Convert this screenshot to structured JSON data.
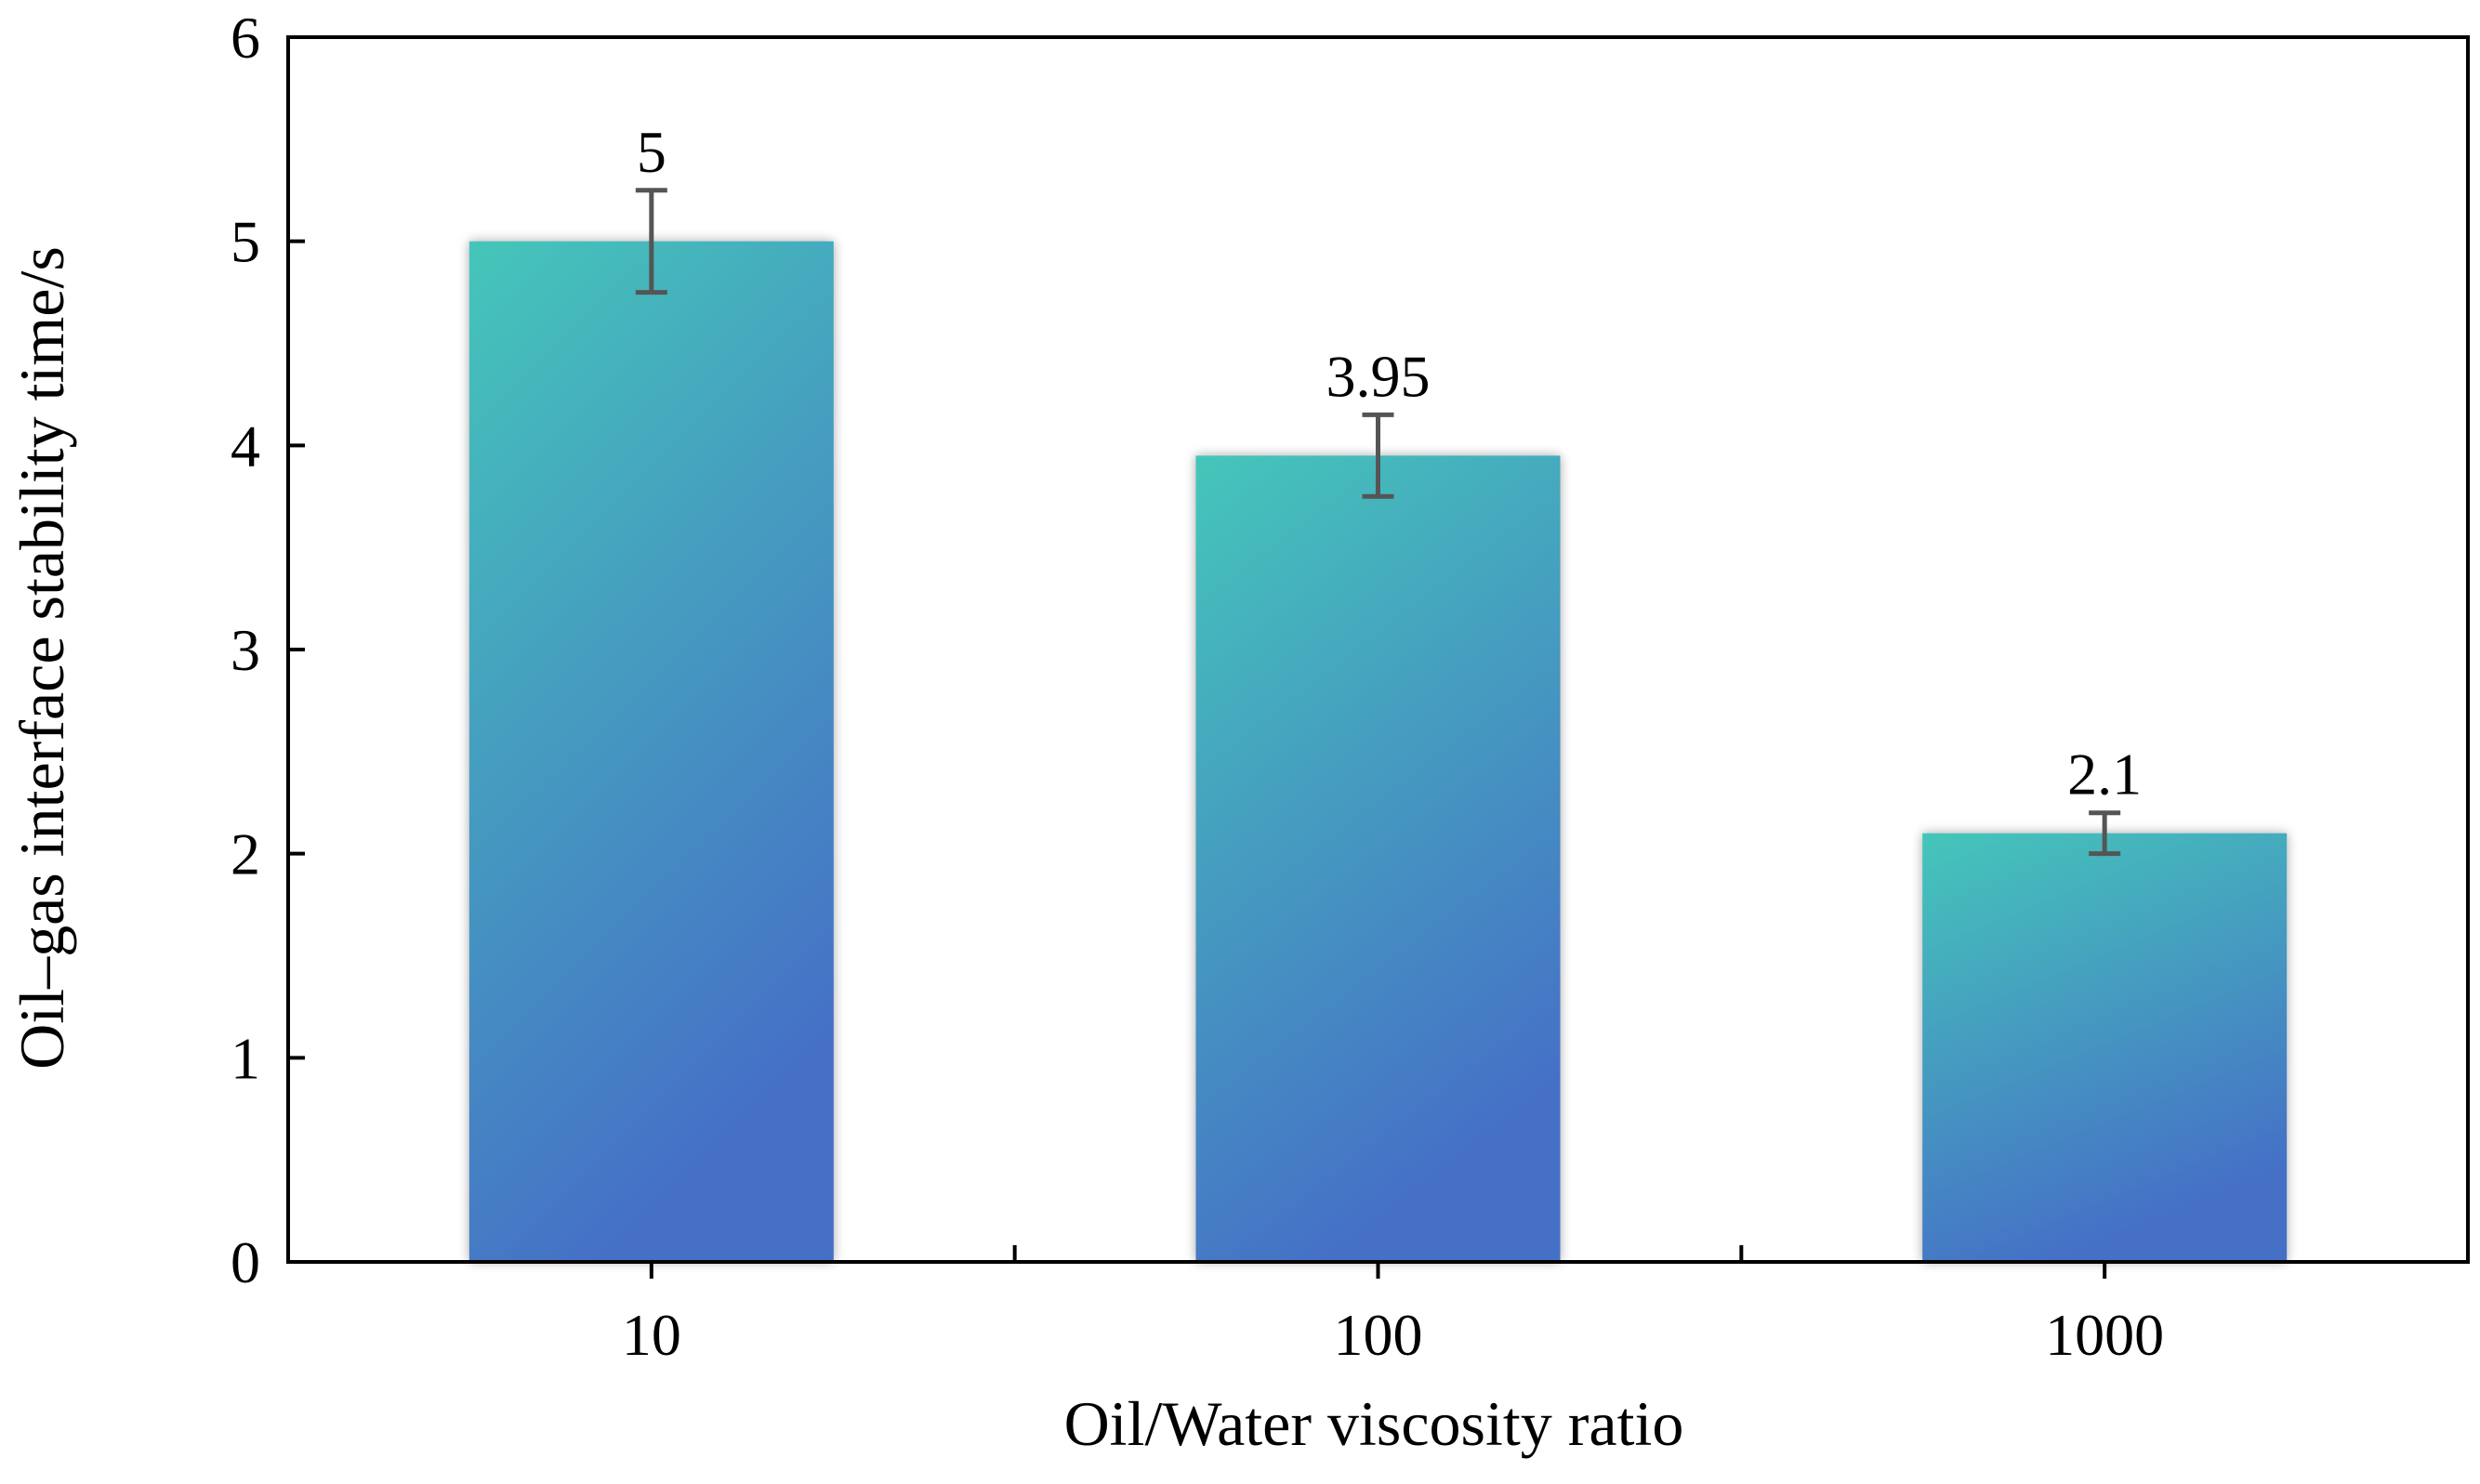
{
  "chart_data": {
    "type": "bar",
    "title": "",
    "xlabel": "Oil/Water viscosity ratio",
    "ylabel": "Oil–gas interface stability time/s",
    "categories": [
      "10",
      "100",
      "1000"
    ],
    "values": [
      5,
      3.95,
      2.1
    ],
    "value_labels": [
      "5",
      "3.95",
      "2.1"
    ],
    "error": [
      0.25,
      0.2,
      0.1
    ],
    "ylim": [
      0,
      6
    ],
    "yticks": [
      0,
      1,
      2,
      3,
      4,
      5,
      6
    ],
    "ytick_labels": [
      "0",
      "1",
      "2",
      "3",
      "4",
      "5",
      "6"
    ],
    "grid": false,
    "colors": {
      "bar_top": "#45C6BA",
      "bar_bottom": "#4470C6",
      "error_bar": "#555555",
      "axis": "#000000"
    }
  }
}
